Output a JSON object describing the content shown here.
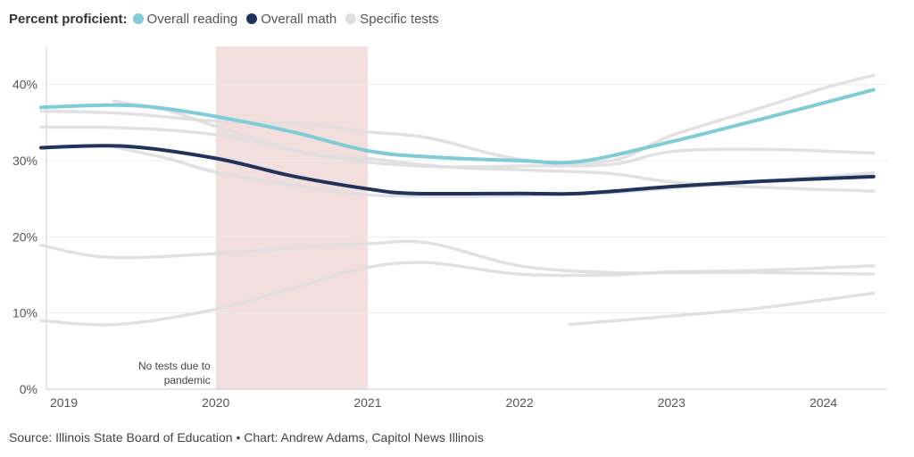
{
  "legend": {
    "prefix": "Percent proficient:",
    "items": [
      {
        "label": "Overall reading",
        "color": "#7fccd6"
      },
      {
        "label": "Overall math",
        "color": "#22335b"
      },
      {
        "label": "Specific tests",
        "color": "#dedede"
      }
    ]
  },
  "chart_data": {
    "type": "line",
    "xlim": [
      2018.85,
      2024.42
    ],
    "ylim": [
      0,
      45
    ],
    "x_ticks": [
      {
        "label": "2019",
        "value": 2019
      },
      {
        "label": "2020",
        "value": 2020
      },
      {
        "label": "2021",
        "value": 2021
      },
      {
        "label": "2022",
        "value": 2022
      },
      {
        "label": "2023",
        "value": 2023
      },
      {
        "label": "2024",
        "value": 2024
      }
    ],
    "y_ticks": [
      {
        "label": "0%",
        "value": 0
      },
      {
        "label": "10%",
        "value": 10
      },
      {
        "label": "20%",
        "value": 20
      },
      {
        "label": "30%",
        "value": 30
      },
      {
        "label": "40%",
        "value": 40
      }
    ],
    "shaded_region": {
      "x_start": 2020,
      "x_end": 2021,
      "label_line1": "No tests due to",
      "label_line2": "pandemic",
      "color": "#f3dede"
    },
    "grid": "horizontal",
    "background_series": [
      {
        "points": [
          [
            2018.85,
            36.5
          ],
          [
            2019.4,
            36.2
          ],
          [
            2020,
            35.2
          ],
          [
            2020.6,
            34.8
          ],
          [
            2021,
            33.8
          ],
          [
            2021.4,
            33
          ],
          [
            2022,
            30.2
          ],
          [
            2022.6,
            30
          ],
          [
            2023,
            33.3
          ],
          [
            2023.6,
            37
          ],
          [
            2024,
            39.5
          ],
          [
            2024.33,
            41.2
          ]
        ]
      },
      {
        "points": [
          [
            2018.85,
            34.4
          ],
          [
            2019.4,
            34.3
          ],
          [
            2020,
            33.4
          ],
          [
            2020.6,
            31
          ],
          [
            2021,
            29.8
          ],
          [
            2021.5,
            29.2
          ],
          [
            2022,
            29.3
          ],
          [
            2022.6,
            29.5
          ],
          [
            2023,
            31.2
          ],
          [
            2023.6,
            31.5
          ],
          [
            2024.33,
            31
          ]
        ]
      },
      {
        "points": [
          [
            2019.33,
            37.8
          ],
          [
            2019.7,
            36.5
          ],
          [
            2020,
            34.5
          ],
          [
            2020.6,
            31
          ],
          [
            2021,
            30.3
          ],
          [
            2021.5,
            29.2
          ],
          [
            2022,
            28.8
          ],
          [
            2022.6,
            28.3
          ],
          [
            2023,
            27.2
          ],
          [
            2023.6,
            26.5
          ],
          [
            2024.33,
            26
          ]
        ]
      },
      {
        "points": [
          [
            2019.33,
            31.8
          ],
          [
            2019.7,
            30.2
          ],
          [
            2020,
            28.5
          ],
          [
            2020.6,
            26.5
          ],
          [
            2021,
            25.5
          ],
          [
            2021.5,
            25.3
          ],
          [
            2022,
            25.4
          ],
          [
            2022.6,
            25.8
          ],
          [
            2023,
            26.4
          ],
          [
            2023.6,
            27.3
          ],
          [
            2024.33,
            28.4
          ]
        ]
      },
      {
        "points": [
          [
            2018.85,
            18.9
          ],
          [
            2019.3,
            17.3
          ],
          [
            2020,
            17.8
          ],
          [
            2020.6,
            18.7
          ],
          [
            2021,
            19.1
          ],
          [
            2021.4,
            19.2
          ],
          [
            2022,
            16.2
          ],
          [
            2022.6,
            15.3
          ],
          [
            2023,
            15.3
          ],
          [
            2023.6,
            15.3
          ],
          [
            2024.33,
            15.1
          ]
        ]
      },
      {
        "points": [
          [
            2018.85,
            9
          ],
          [
            2019.35,
            8.5
          ],
          [
            2020,
            10.5
          ],
          [
            2020.6,
            13.8
          ],
          [
            2021,
            16
          ],
          [
            2021.4,
            16.6
          ],
          [
            2022,
            15.1
          ],
          [
            2022.6,
            15
          ],
          [
            2023,
            15.4
          ],
          [
            2023.6,
            15.6
          ],
          [
            2024.33,
            16.2
          ]
        ]
      },
      {
        "points": [
          [
            2022.33,
            8.5
          ],
          [
            2023,
            9.6
          ],
          [
            2023.6,
            10.7
          ],
          [
            2024.33,
            12.6
          ]
        ]
      }
    ],
    "series": [
      {
        "name": "Overall reading",
        "color": "#7fccd6",
        "points": [
          [
            2018.85,
            37
          ],
          [
            2019.3,
            37.3
          ],
          [
            2019.6,
            37
          ],
          [
            2020,
            35.8
          ],
          [
            2020.5,
            33.8
          ],
          [
            2021,
            31.3
          ],
          [
            2021.4,
            30.5
          ],
          [
            2022,
            30
          ],
          [
            2022.4,
            29.9
          ],
          [
            2023,
            32.5
          ],
          [
            2023.6,
            35.5
          ],
          [
            2024.33,
            39.3
          ]
        ]
      },
      {
        "name": "Overall math",
        "color": "#22335b",
        "points": [
          [
            2018.85,
            31.7
          ],
          [
            2019.4,
            31.9
          ],
          [
            2020,
            30.3
          ],
          [
            2020.5,
            28
          ],
          [
            2021,
            26.3
          ],
          [
            2021.3,
            25.7
          ],
          [
            2022,
            25.7
          ],
          [
            2022.4,
            25.7
          ],
          [
            2023,
            26.6
          ],
          [
            2023.6,
            27.3
          ],
          [
            2024.33,
            27.9
          ]
        ]
      }
    ]
  },
  "source": "Source: Illinois State Board of Education • Chart: Andrew Adams, Capitol News Illinois"
}
